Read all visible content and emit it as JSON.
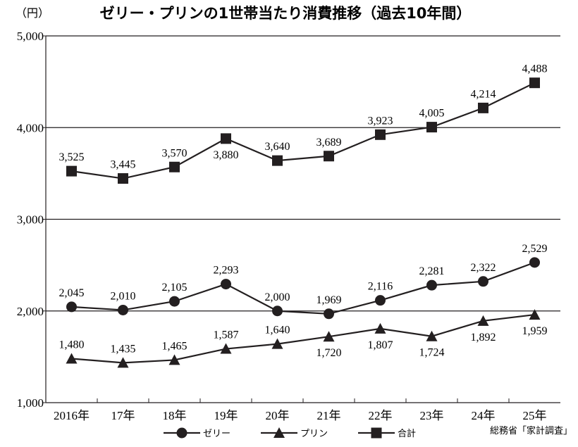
{
  "chart_data": {
    "type": "line",
    "title": "ゼリー・プリンの1世帯当たり消費推移（過去10年間）",
    "unit_label": "（円）",
    "source": "総務省「家計調査」",
    "categories": [
      "2016年",
      "17年",
      "18年",
      "19年",
      "20年",
      "21年",
      "22年",
      "23年",
      "24年",
      "25年"
    ],
    "ylim": [
      1000,
      5000
    ],
    "yticks": [
      "1,000",
      "2,000",
      "3,000",
      "4,000",
      "5,000"
    ],
    "ytick_values": [
      1000,
      2000,
      3000,
      4000,
      5000
    ],
    "grid": "horizontal",
    "legend_position": "bottom",
    "series": [
      {
        "name": "ゼリー",
        "marker": "circle",
        "values": [
          2045,
          2010,
          2105,
          2293,
          2000,
          1969,
          2116,
          2281,
          2322,
          2529
        ],
        "labels": [
          "2,045",
          "2,010",
          "2,105",
          "2,293",
          "2,000",
          "1,969",
          "2,116",
          "2,281",
          "2,322",
          "2,529"
        ]
      },
      {
        "name": "プリン",
        "marker": "triangle",
        "values": [
          1480,
          1435,
          1465,
          1587,
          1640,
          1720,
          1807,
          1724,
          1892,
          1959
        ],
        "labels": [
          "1,480",
          "1,435",
          "1,465",
          "1,587",
          "1,640",
          "1,720",
          "1,807",
          "1,724",
          "1,892",
          "1,959"
        ]
      },
      {
        "name": "合計",
        "marker": "square",
        "values": [
          3525,
          3445,
          3570,
          3880,
          3640,
          3689,
          3923,
          4005,
          4214,
          4488
        ],
        "labels": [
          "3,525",
          "3,445",
          "3,570",
          "3,880",
          "3,640",
          "3,689",
          "3,923",
          "4,005",
          "4,214",
          "4,488"
        ]
      }
    ],
    "color": "#231f20"
  }
}
